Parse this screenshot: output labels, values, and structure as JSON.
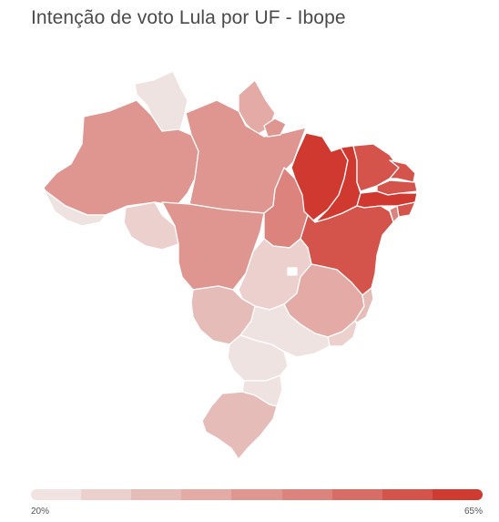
{
  "title": "Intenção de voto Lula por UF - Ibope",
  "legend": {
    "min_label": "20%",
    "max_label": "65%",
    "colors": [
      "#f1e3e2",
      "#ecd0ce",
      "#e6bcb9",
      "#e3aaa6",
      "#df9690",
      "#dc837d",
      "#d86c66",
      "#d4544c",
      "#cf3b31"
    ]
  },
  "palette": {
    "lightest": "#f1e3e2",
    "light": "#ecd0ce",
    "pale": "#e6bcb9",
    "mid_light": "#e3aaa6",
    "mid": "#df9690",
    "mid_dark": "#dc837d",
    "dark": "#d4544c",
    "darkest": "#cf3b31",
    "border": "#ffffff"
  }
}
